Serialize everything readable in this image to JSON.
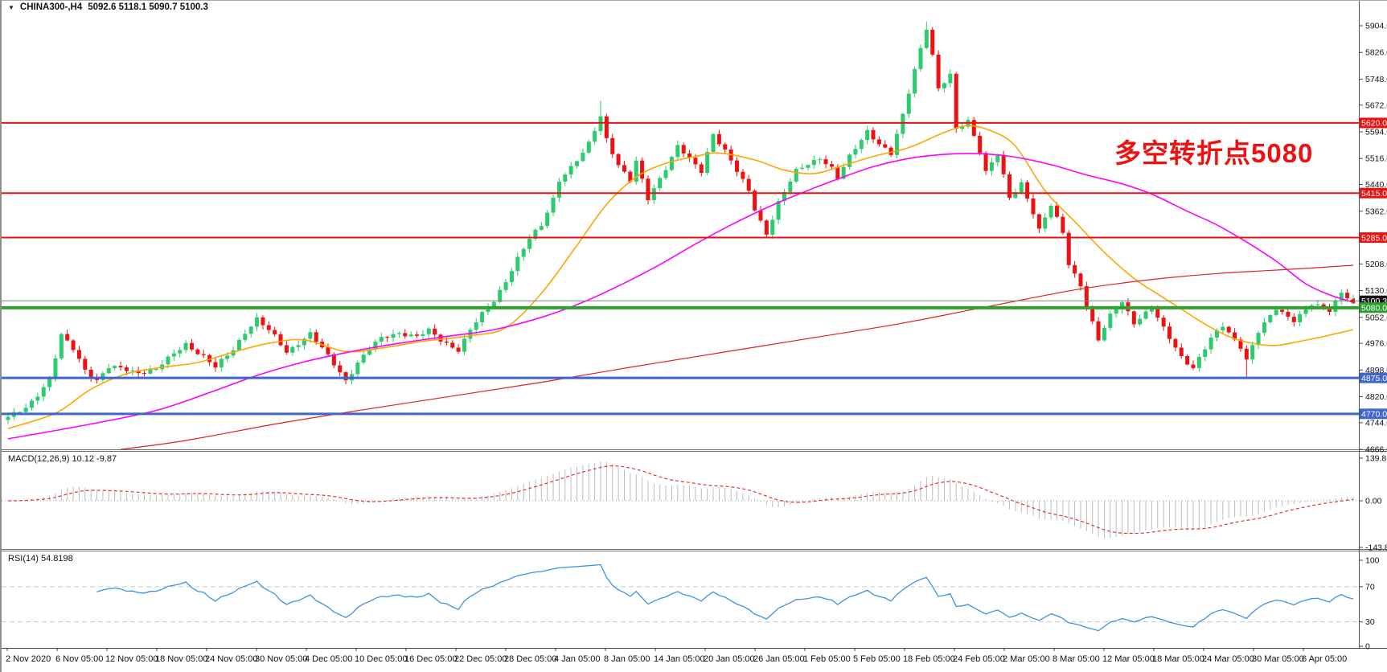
{
  "window": {
    "dropdown_glyph": "▼",
    "symbol_title": "CHINA300-,H4",
    "quote": "5092.6 5118.1 5090.7 5100.3"
  },
  "annotation": {
    "text": "多空转折点5080"
  },
  "panels": {
    "macd": {
      "label": "MACD(12,26,9) 10.12 -9.87",
      "ticks": [
        "139.86",
        "0.00",
        "-143.82"
      ]
    },
    "rsi": {
      "label": "RSI(14) 54.8198",
      "ticks": [
        "100",
        "70",
        "30",
        "0"
      ],
      "levels": [
        70,
        30
      ]
    }
  },
  "price_axis": {
    "ticks": [
      "5904.0",
      "5826.0",
      "5748.0",
      "5672.0",
      "5594.0",
      "5516.0",
      "5440.0",
      "5362.0",
      "5285.0",
      "5208.0",
      "5130.0",
      "5052.0",
      "4976.0",
      "4898.0",
      "4820.0",
      "4744.0",
      "4666.0"
    ],
    "badges": [
      {
        "label": "5620.0",
        "value": 5620.0,
        "bg": "#ee1111"
      },
      {
        "label": "5415.0",
        "value": 5415.0,
        "bg": "#ee1111"
      },
      {
        "label": "5285.0",
        "value": 5285.0,
        "bg": "#ee1111"
      },
      {
        "label": "5100.3",
        "value": 5100.3,
        "bg": "#141414"
      },
      {
        "label": "5080.0",
        "value": 5080.0,
        "bg": "#2ea12e"
      },
      {
        "label": "4875.0",
        "value": 4875.0,
        "bg": "#3f66cc"
      },
      {
        "label": "4770.0",
        "value": 4770.0,
        "bg": "#3f66cc"
      }
    ]
  },
  "time_axis": {
    "labels": [
      "2 Nov 2020",
      "6 Nov 05:00",
      "12 Nov 05:00",
      "18 Nov 05:00",
      "24 Nov 05:00",
      "30 Nov 05:00",
      "4 Dec 05:00",
      "10 Dec 05:00",
      "16 Dec 05:00",
      "22 Dec 05:00",
      "28 Dec 05:00",
      "4 Jan 05:00",
      "8 Jan 05:00",
      "14 Jan 05:00",
      "20 Jan 05:00",
      "26 Jan 05:00",
      "1 Feb 05:00",
      "5 Feb 05:00",
      "18 Feb 05:00",
      "24 Feb 05:00",
      "2 Mar 05:00",
      "8 Mar 05:00",
      "12 Mar 05:00",
      "18 Mar 05:00",
      "24 Mar 05:00",
      "30 Mar 05:00",
      "6 Apr 05:00"
    ]
  },
  "colors": {
    "bull": "#2ccc6e",
    "bear": "#ee1111",
    "ma_fast": "#ffa500",
    "ma_mid": "#ff00ff",
    "ma_slow": "#dd2222",
    "macd_hist": "#bcbcbc",
    "macd_signal": "#e03131",
    "macd_zero": "#999999",
    "rsi_line": "#3d93e0",
    "rsi_levels": "#c9c9c9",
    "level_red": "#ee1111",
    "level_green": "#2ea12e",
    "level_blue": "#3f66cc",
    "current_price_line": "#808080",
    "annotation": "#ee1111",
    "axis_text": "#111111",
    "border": "#666666"
  },
  "chart_data": [
    {
      "type": "candlestick",
      "title": "CHINA300-,H4",
      "timeframe": "H4",
      "bars": 228,
      "y_range": [
        4666,
        5930
      ],
      "x_labels_range": [
        "2 Nov 2020",
        "6 Apr 05:00"
      ],
      "last_bar_ohlc": {
        "open": 5092.6,
        "high": 5118.1,
        "low": 5090.7,
        "close": 5100.3
      },
      "current_price": 5100.3,
      "close_waypoints": [
        [
          0,
          4758
        ],
        [
          3,
          4788
        ],
        [
          5,
          4828
        ],
        [
          7,
          4870
        ],
        [
          9,
          4998
        ],
        [
          11,
          4960
        ],
        [
          13,
          4900
        ],
        [
          15,
          4868
        ],
        [
          17,
          4905
        ],
        [
          19,
          4902
        ],
        [
          22,
          4892
        ],
        [
          25,
          4900
        ],
        [
          28,
          4945
        ],
        [
          30,
          4975
        ],
        [
          33,
          4938
        ],
        [
          35,
          4905
        ],
        [
          38,
          4958
        ],
        [
          40,
          5010
        ],
        [
          42,
          5048
        ],
        [
          45,
          4995
        ],
        [
          47,
          4950
        ],
        [
          49,
          4978
        ],
        [
          51,
          5005
        ],
        [
          53,
          4960
        ],
        [
          55,
          4915
        ],
        [
          57,
          4868
        ],
        [
          59,
          4920
        ],
        [
          61,
          4960
        ],
        [
          63,
          4990
        ],
        [
          66,
          5008
        ],
        [
          69,
          4996
        ],
        [
          71,
          5012
        ],
        [
          73,
          4985
        ],
        [
          76,
          4958
        ],
        [
          78,
          5015
        ],
        [
          80,
          5060
        ],
        [
          82,
          5100
        ],
        [
          84,
          5160
        ],
        [
          86,
          5225
        ],
        [
          88,
          5280
        ],
        [
          90,
          5320
        ],
        [
          92,
          5400
        ],
        [
          93,
          5455
        ],
        [
          95,
          5490
        ],
        [
          97,
          5530
        ],
        [
          98,
          5558
        ],
        [
          100,
          5640
        ],
        [
          101,
          5575
        ],
        [
          103,
          5498
        ],
        [
          105,
          5450
        ],
        [
          106,
          5505
        ],
        [
          108,
          5398
        ],
        [
          110,
          5460
        ],
        [
          112,
          5520
        ],
        [
          113,
          5553
        ],
        [
          115,
          5512
        ],
        [
          117,
          5478
        ],
        [
          119,
          5590
        ],
        [
          121,
          5540
        ],
        [
          123,
          5478
        ],
        [
          125,
          5420
        ],
        [
          126,
          5368
        ],
        [
          128,
          5298
        ],
        [
          130,
          5388
        ],
        [
          133,
          5478
        ],
        [
          135,
          5500
        ],
        [
          137,
          5520
        ],
        [
          139,
          5488
        ],
        [
          140,
          5458
        ],
        [
          142,
          5520
        ],
        [
          145,
          5598
        ],
        [
          147,
          5560
        ],
        [
          149,
          5528
        ],
        [
          151,
          5640
        ],
        [
          153,
          5778
        ],
        [
          155,
          5900
        ],
        [
          156,
          5820
        ],
        [
          157,
          5718
        ],
        [
          159,
          5758
        ],
        [
          160,
          5598
        ],
        [
          162,
          5628
        ],
        [
          164,
          5540
        ],
        [
          165,
          5478
        ],
        [
          167,
          5528
        ],
        [
          169,
          5398
        ],
        [
          171,
          5445
        ],
        [
          173,
          5360
        ],
        [
          174,
          5308
        ],
        [
          176,
          5378
        ],
        [
          178,
          5298
        ],
        [
          179,
          5208
        ],
        [
          181,
          5148
        ],
        [
          182,
          5088
        ],
        [
          184,
          4985
        ],
        [
          186,
          5055
        ],
        [
          188,
          5098
        ],
        [
          190,
          5038
        ],
        [
          193,
          5078
        ],
        [
          195,
          5018
        ],
        [
          198,
          4938
        ],
        [
          200,
          4905
        ],
        [
          203,
          4988
        ],
        [
          205,
          5028
        ],
        [
          208,
          4968
        ],
        [
          209,
          4928
        ],
        [
          211,
          5008
        ],
        [
          214,
          5078
        ],
        [
          217,
          5045
        ],
        [
          220,
          5088
        ],
        [
          223,
          5072
        ],
        [
          225,
          5128
        ],
        [
          227,
          5100.3
        ]
      ],
      "wick_extremes": {
        "high": {
          "100": 5686,
          "155": 5916
        },
        "low": {
          "57": 4856,
          "128": 5283,
          "209": 4872
        }
      },
      "horizontal_levels": [
        {
          "price": 5620.0,
          "color": "#ee1111",
          "width": 2
        },
        {
          "price": 5415.0,
          "color": "#ee1111",
          "width": 2
        },
        {
          "price": 5285.0,
          "color": "#ee1111",
          "width": 2
        },
        {
          "price": 5080.0,
          "color": "#2ea12e",
          "width": 4
        },
        {
          "price": 4875.0,
          "color": "#3f66cc",
          "width": 3
        },
        {
          "price": 4770.0,
          "color": "#3f66cc",
          "width": 3
        }
      ],
      "moving_averages": [
        {
          "name": "fast-ma",
          "color": "#ffa500",
          "width": 1.6,
          "points": [
            [
              0,
              4727
            ],
            [
              8,
              4772
            ],
            [
              14,
              4842
            ],
            [
              20,
              4887
            ],
            [
              26,
              4906
            ],
            [
              32,
              4920
            ],
            [
              38,
              4950
            ],
            [
              44,
              4976
            ],
            [
              50,
              4986
            ],
            [
              57,
              4952
            ],
            [
              63,
              4962
            ],
            [
              70,
              4982
            ],
            [
              78,
              4998
            ],
            [
              84,
              5022
            ],
            [
              90,
              5122
            ],
            [
              96,
              5262
            ],
            [
              101,
              5382
            ],
            [
              106,
              5462
            ],
            [
              111,
              5502
            ],
            [
              116,
              5522
            ],
            [
              120,
              5532
            ],
            [
              126,
              5512
            ],
            [
              131,
              5482
            ],
            [
              136,
              5472
            ],
            [
              141,
              5496
            ],
            [
              146,
              5522
            ],
            [
              152,
              5548
            ],
            [
              158,
              5592
            ],
            [
              162,
              5612
            ],
            [
              166,
              5596
            ],
            [
              170,
              5552
            ],
            [
              175,
              5422
            ],
            [
              180,
              5332
            ],
            [
              185,
              5242
            ],
            [
              190,
              5166
            ],
            [
              194,
              5120
            ],
            [
              198,
              5076
            ],
            [
              202,
              5032
            ],
            [
              206,
              4996
            ],
            [
              210,
              4976
            ],
            [
              214,
              4970
            ],
            [
              218,
              4982
            ],
            [
              222,
              4996
            ],
            [
              227,
              5016
            ]
          ]
        },
        {
          "name": "mid-ma",
          "color": "#ff00ff",
          "width": 1.6,
          "points": [
            [
              0,
              4697
            ],
            [
              13,
              4737
            ],
            [
              25,
              4780
            ],
            [
              34,
              4832
            ],
            [
              42,
              4882
            ],
            [
              50,
              4922
            ],
            [
              58,
              4952
            ],
            [
              66,
              4976
            ],
            [
              74,
              4996
            ],
            [
              82,
              5016
            ],
            [
              90,
              5052
            ],
            [
              97,
              5096
            ],
            [
              104,
              5152
            ],
            [
              110,
              5206
            ],
            [
              116,
              5266
            ],
            [
              122,
              5322
            ],
            [
              128,
              5372
            ],
            [
              134,
              5416
            ],
            [
              140,
              5456
            ],
            [
              146,
              5492
            ],
            [
              152,
              5516
            ],
            [
              158,
              5528
            ],
            [
              164,
              5530
            ],
            [
              170,
              5520
            ],
            [
              176,
              5498
            ],
            [
              182,
              5468
            ],
            [
              188,
              5442
            ],
            [
              193,
              5412
            ],
            [
              199,
              5362
            ],
            [
              204,
              5322
            ],
            [
              209,
              5272
            ],
            [
              214,
              5216
            ],
            [
              219,
              5150
            ],
            [
              223,
              5118
            ],
            [
              227,
              5096
            ]
          ]
        },
        {
          "name": "slow-ma",
          "color": "#dd2222",
          "width": 1.2,
          "points": [
            [
              19,
              4666
            ],
            [
              30,
              4692
            ],
            [
              45,
              4740
            ],
            [
              60,
              4782
            ],
            [
              75,
              4822
            ],
            [
              90,
              4862
            ],
            [
              105,
              4906
            ],
            [
              120,
              4948
            ],
            [
              135,
              4990
            ],
            [
              150,
              5032
            ],
            [
              162,
              5072
            ],
            [
              172,
              5106
            ],
            [
              180,
              5132
            ],
            [
              188,
              5152
            ],
            [
              196,
              5168
            ],
            [
              204,
              5180
            ],
            [
              212,
              5188
            ],
            [
              220,
              5196
            ],
            [
              227,
              5204
            ]
          ]
        }
      ]
    },
    {
      "type": "bar",
      "name": "MACD(12,26,9)",
      "params": [
        12,
        26,
        9
      ],
      "current_values": [
        10.12,
        -9.87
      ],
      "ylim": [
        -143.82,
        139.86
      ],
      "derived_from": "candlestick closes (EMA12 - EMA26, signal EMA9)"
    },
    {
      "type": "line",
      "name": "RSI(14)",
      "period": 14,
      "current_value": 54.8198,
      "ylim": [
        0,
        100
      ],
      "levels": [
        70,
        30
      ]
    }
  ]
}
